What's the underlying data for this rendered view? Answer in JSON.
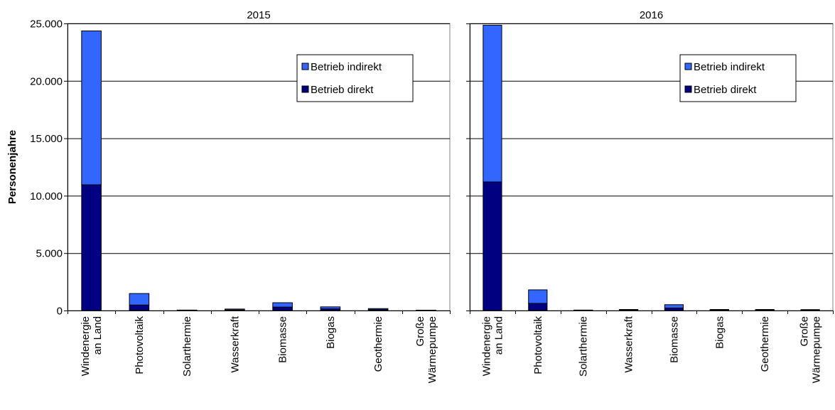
{
  "chart_data": {
    "type": "bar",
    "stacked": true,
    "ylabel": "Personenjahre",
    "ylim": [
      0,
      25000
    ],
    "yticks": [
      "0",
      "5.000",
      "10.000",
      "15.000",
      "20.000",
      "25.000"
    ],
    "ytick_values": [
      0,
      5000,
      10000,
      15000,
      20000,
      25000
    ],
    "grid": true,
    "legend_position": "top-right",
    "colors": {
      "direkt": "#000080",
      "indirekt": "#3366ff"
    },
    "legend": [
      {
        "key": "indirekt",
        "label": "Betrieb indirekt"
      },
      {
        "key": "direkt",
        "label": "Betrieb direkt"
      }
    ],
    "categories": [
      [
        "Windenergie",
        "an Land"
      ],
      [
        "Photovoltaik"
      ],
      [
        "Solarthermie"
      ],
      [
        "Wasserkraft"
      ],
      [
        "Biomasse"
      ],
      [
        "Biogas"
      ],
      [
        "Geothermie"
      ],
      [
        "Große",
        "Wärmepumpe"
      ]
    ],
    "panels": [
      {
        "title": "2015",
        "series": [
          {
            "name": "Betrieb direkt",
            "key": "direkt",
            "values": [
              10950,
              480,
              20,
              50,
              300,
              150,
              80,
              10
            ]
          },
          {
            "name": "Betrieb indirekt",
            "key": "indirekt",
            "values": [
              13400,
              1000,
              20,
              80,
              380,
              170,
              90,
              20
            ]
          }
        ]
      },
      {
        "title": "2016",
        "series": [
          {
            "name": "Betrieb direkt",
            "key": "direkt",
            "values": [
              11200,
              620,
              20,
              40,
              220,
              40,
              40,
              30
            ]
          },
          {
            "name": "Betrieb indirekt",
            "key": "indirekt",
            "values": [
              13650,
              1180,
              20,
              50,
              290,
              50,
              50,
              50
            ]
          }
        ]
      }
    ]
  }
}
